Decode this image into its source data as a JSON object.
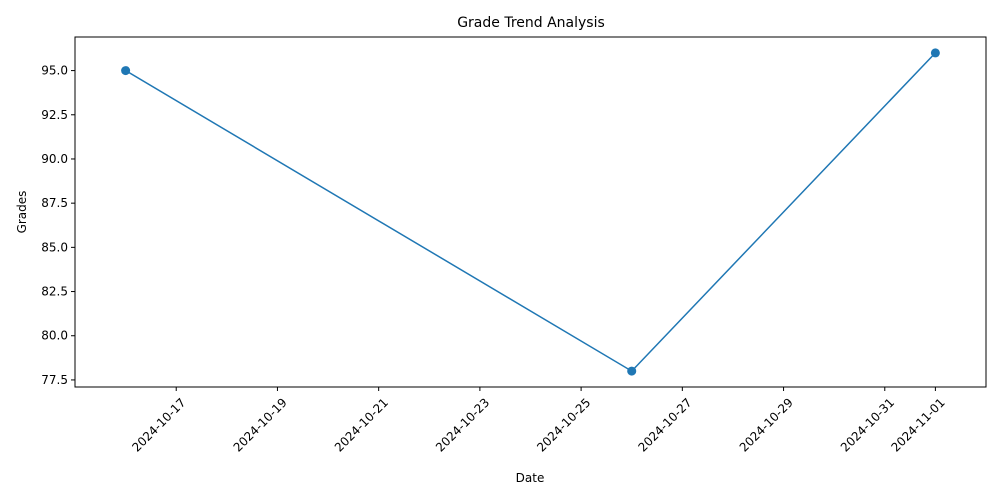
{
  "chart_data": {
    "type": "line",
    "title": "Grade Trend Analysis",
    "xlabel": "Date",
    "ylabel": "Grades",
    "x": [
      "2024-10-16",
      "2024-10-26",
      "2024-11-01"
    ],
    "series": [
      {
        "values": [
          95.0,
          78.0,
          96.0
        ],
        "color": "#1f77b4",
        "marker": "circle"
      }
    ],
    "x_ticks": [
      "2024-10-17",
      "2024-10-19",
      "2024-10-21",
      "2024-10-23",
      "2024-10-25",
      "2024-10-27",
      "2024-10-29",
      "2024-10-31",
      "2024-11-01"
    ],
    "y_ticks": [
      "77.5",
      "80.0",
      "82.5",
      "85.0",
      "87.5",
      "90.0",
      "92.5",
      "95.0"
    ],
    "xlim": [
      "2024-10-15",
      "2024-11-02"
    ],
    "ylim": [
      77.1,
      96.9
    ],
    "grid": false,
    "x_tick_rotation": 45
  }
}
